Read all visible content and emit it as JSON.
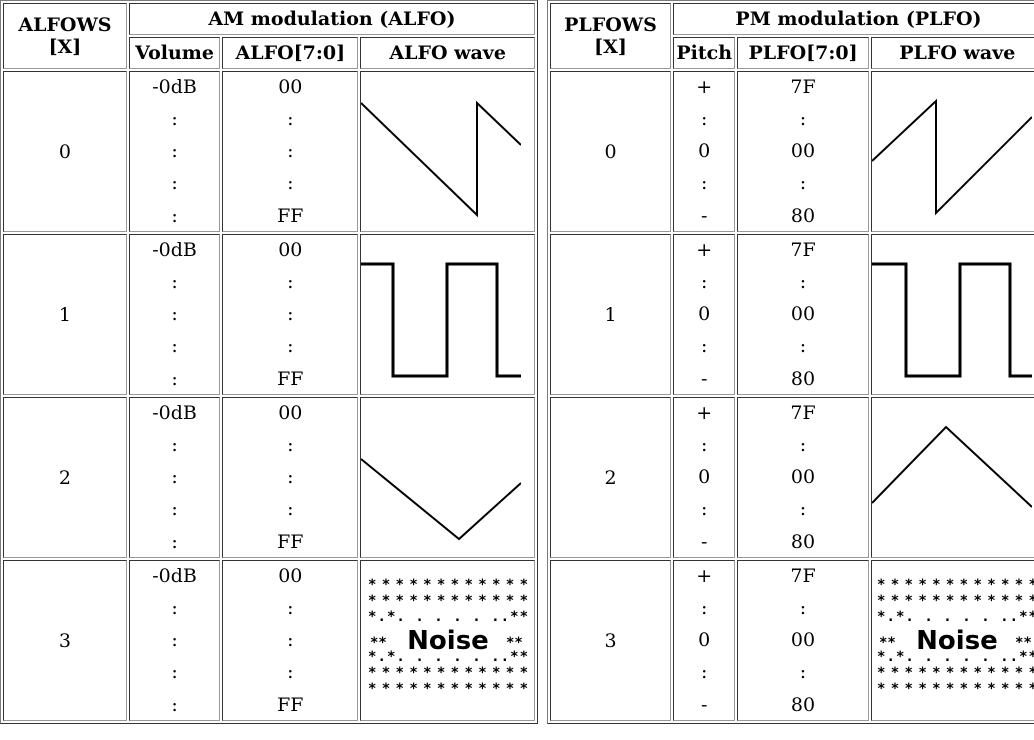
{
  "am": {
    "ws_header": "ALFOWS",
    "ws_sub": "[X]",
    "group_header": "AM modulation (ALFO)",
    "col_level": "Volume",
    "col_reg": "ALFO[7:0]",
    "col_wave": "ALFO wave"
  },
  "pm": {
    "ws_header": "PLFOWS",
    "ws_sub": "[X]",
    "group_header": "PM modulation (PLFO)",
    "col_level": "Pitch",
    "col_reg": "PLFO[7:0]",
    "col_wave": "PLFO wave"
  },
  "rows": [
    {
      "x": "0",
      "am_level": [
        "-0dB",
        ":",
        ":",
        ":",
        ":"
      ],
      "am_reg": [
        "00",
        ":",
        ":",
        ":",
        "FF"
      ],
      "am_wave": "sawtooth",
      "pm_level": [
        "+",
        ":",
        "0",
        ":",
        "-"
      ],
      "pm_reg": [
        "7F",
        ":",
        "00",
        ":",
        "80"
      ],
      "pm_wave": "sawtooth"
    },
    {
      "x": "1",
      "am_level": [
        "-0dB",
        ":",
        ":",
        ":",
        ":"
      ],
      "am_reg": [
        "00",
        ":",
        ":",
        ":",
        "FF"
      ],
      "am_wave": "square",
      "pm_level": [
        "+",
        ":",
        "0",
        ":",
        "-"
      ],
      "pm_reg": [
        "7F",
        ":",
        "00",
        ":",
        "80"
      ],
      "pm_wave": "square"
    },
    {
      "x": "2",
      "am_level": [
        "-0dB",
        ":",
        ":",
        ":",
        ":"
      ],
      "am_reg": [
        "00",
        ":",
        ":",
        ":",
        "FF"
      ],
      "am_wave": "triangle",
      "pm_level": [
        "+",
        ":",
        "0",
        ":",
        "-"
      ],
      "pm_reg": [
        "7F",
        ":",
        "00",
        ":",
        "80"
      ],
      "pm_wave": "triangle"
    },
    {
      "x": "3",
      "am_level": [
        "-0dB",
        ":",
        ":",
        ":",
        ":"
      ],
      "am_reg": [
        "00",
        ":",
        ":",
        ":",
        "FF"
      ],
      "am_wave": "noise",
      "am_noise_label": "Noise",
      "pm_level": [
        "+",
        ":",
        "0",
        ":",
        "-"
      ],
      "pm_reg": [
        "7F",
        ":",
        "00",
        ":",
        "80"
      ],
      "pm_wave": "noise",
      "pm_noise_label": "Noise"
    }
  ]
}
